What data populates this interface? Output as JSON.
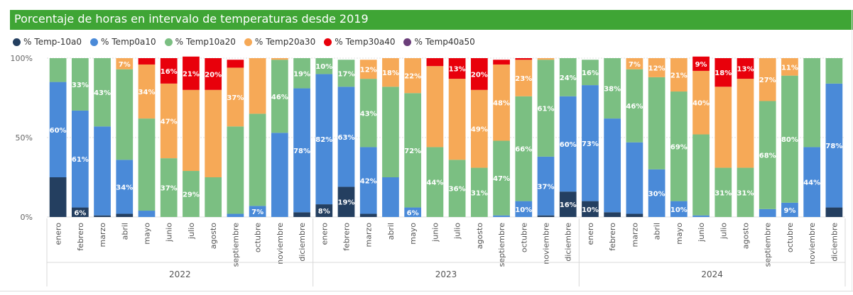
{
  "title": "Porcentaje de horas en intervalo de temperaturas desde 2019",
  "legend": [
    {
      "label": "Temp-10a0",
      "prefix": "%",
      "color": "#243f60"
    },
    {
      "label": "Temp0a10",
      "prefix": "%",
      "color": "#4a8ad8"
    },
    {
      "label": "Temp10a20",
      "prefix": "%",
      "color": "#7bbf82"
    },
    {
      "label": "Temp20a30",
      "prefix": "%",
      "color": "#f6a957"
    },
    {
      "label": "Temp30a40",
      "prefix": "%",
      "color": "#e8000b"
    },
    {
      "label": "Temp40a50",
      "prefix": "%",
      "color": "#6b3e7a"
    }
  ],
  "chart_data": {
    "type": "bar",
    "stacked": true,
    "title": "Porcentaje de horas en intervalo de temperaturas desde 2019",
    "ylim": [
      0,
      100
    ],
    "yticks": [
      "0%",
      "50%",
      "100%"
    ],
    "years": [
      "2022",
      "2023",
      "2024"
    ],
    "months": [
      "enero",
      "febrero",
      "marzo",
      "abril",
      "mayo",
      "junio",
      "julio",
      "agosto",
      "septiembre",
      "octubre",
      "noviembre",
      "diciembre"
    ],
    "series": [
      {
        "name": "Temp-10a0",
        "values": [
          25,
          6,
          1,
          2,
          0,
          0,
          0,
          0,
          0,
          0,
          0,
          3,
          8,
          19,
          2,
          0,
          0,
          0,
          0,
          0,
          0,
          0,
          1,
          16,
          10,
          3,
          2,
          0,
          0,
          0,
          0,
          0,
          0,
          0,
          0,
          6
        ],
        "labels": [
          "",
          "6%",
          "",
          "",
          "",
          "",
          "",
          "",
          "",
          "",
          "",
          "",
          "8%",
          "19%",
          "",
          "",
          "",
          "",
          "",
          "",
          "",
          "",
          "",
          "16%",
          "10%",
          "",
          "",
          "",
          "",
          "",
          "",
          "",
          "",
          "",
          "",
          ""
        ]
      },
      {
        "name": "Temp0a10",
        "values": [
          60,
          61,
          56,
          34,
          4,
          0,
          0,
          0,
          2,
          7,
          53,
          78,
          82,
          63,
          42,
          25,
          6,
          0,
          0,
          0,
          1,
          10,
          37,
          60,
          73,
          59,
          45,
          30,
          10,
          1,
          0,
          0,
          5,
          9,
          44,
          78
        ],
        "labels": [
          "60%",
          "61%",
          "",
          "34%",
          "",
          "",
          "",
          "",
          "",
          "7%",
          "",
          "78%",
          "82%",
          "63%",
          "42%",
          "",
          "6%",
          "",
          "",
          "",
          "",
          "10%",
          "37%",
          "60%",
          "73%",
          "",
          "",
          "30%",
          "10%",
          "",
          "",
          "",
          "",
          "9%",
          "44%",
          "78%"
        ]
      },
      {
        "name": "Temp10a20",
        "values": [
          15,
          33,
          43,
          57,
          58,
          37,
          29,
          25,
          55,
          58,
          46,
          19,
          10,
          17,
          43,
          57,
          72,
          44,
          36,
          31,
          47,
          66,
          61,
          24,
          16,
          38,
          46,
          58,
          69,
          51,
          31,
          31,
          68,
          80,
          56,
          16
        ],
        "labels": [
          "",
          "33%",
          "43%",
          "",
          "",
          "37%",
          "29%",
          "",
          "",
          "",
          "46%",
          "19%",
          "10%",
          "17%",
          "43%",
          "",
          "72%",
          "44%",
          "36%",
          "31%",
          "47%",
          "66%",
          "61%",
          "24%",
          "16%",
          "38%",
          "46%",
          "",
          "69%",
          "",
          "31%",
          "31%",
          "68%",
          "80%",
          "",
          ""
        ]
      },
      {
        "name": "Temp20a30",
        "values": [
          0,
          0,
          0,
          7,
          34,
          47,
          51,
          55,
          37,
          35,
          1,
          0,
          0,
          0,
          12,
          18,
          22,
          51,
          51,
          49,
          48,
          23,
          1,
          0,
          0,
          0,
          7,
          12,
          21,
          40,
          51,
          56,
          27,
          11,
          0,
          0
        ],
        "labels": [
          "",
          "",
          "",
          "7%",
          "34%",
          "47%",
          "",
          "",
          "37%",
          "",
          "",
          "",
          "",
          "",
          "12%",
          "18%",
          "22%",
          "",
          "",
          "49%",
          "48%",
          "23%",
          "",
          "",
          "",
          "",
          "7%",
          "12%",
          "21%",
          "40%",
          "",
          "",
          "27%",
          "11%",
          "",
          ""
        ]
      },
      {
        "name": "Temp30a40",
        "values": [
          0,
          0,
          0,
          0,
          4,
          16,
          21,
          20,
          5,
          0,
          0,
          0,
          0,
          0,
          0,
          0,
          0,
          5,
          13,
          20,
          3,
          1,
          0,
          0,
          0,
          0,
          0,
          0,
          0,
          9,
          18,
          13,
          0,
          0,
          0,
          0
        ],
        "labels": [
          "",
          "",
          "",
          "",
          "",
          "16%",
          "21%",
          "20%",
          "",
          "",
          "",
          "",
          "",
          "",
          "",
          "",
          "",
          "",
          "13%",
          "20%",
          "",
          "",
          "",
          "",
          "",
          "",
          "",
          "",
          "",
          "9%",
          "18%",
          "13%",
          "",
          "",
          "",
          ""
        ]
      },
      {
        "name": "Temp40a50",
        "values": [
          0,
          0,
          0,
          0,
          0,
          0,
          0,
          0,
          0,
          0,
          0,
          0,
          0,
          0,
          0,
          0,
          0,
          0,
          0,
          0,
          0,
          0,
          0,
          0,
          0,
          0,
          0,
          0,
          0,
          0,
          0,
          0,
          0,
          0,
          0,
          0
        ],
        "labels": [
          "",
          "",
          "",
          "",
          "",
          "",
          "",
          "",
          "",
          "",
          "",
          "",
          "",
          "",
          "",
          "",
          "",
          "",
          "",
          "",
          "",
          "",
          "",
          "",
          "",
          "",
          "",
          "",
          "",
          "",
          "",
          "",
          "",
          "",
          "",
          ""
        ]
      }
    ]
  }
}
